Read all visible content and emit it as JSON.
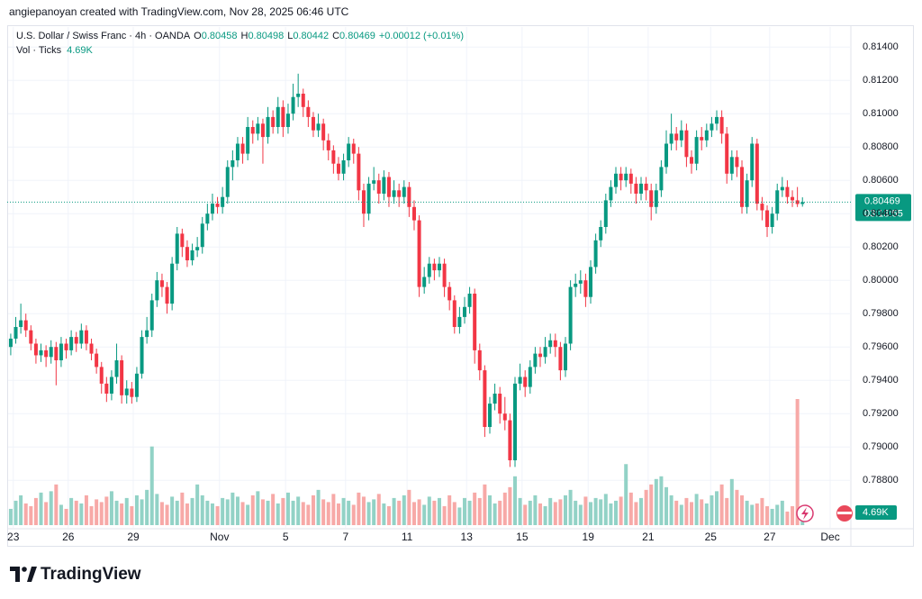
{
  "header": {
    "credit": "angiepanoyan created with TradingView.com, Nov 28, 2025 06:46 UTC"
  },
  "chart_data": {
    "type": "candlestick",
    "symbol": "U.S. Dollar / Swiss Franc · 4h · OANDA",
    "ohlc_labels": [
      "O",
      "H",
      "L",
      "C"
    ],
    "change": "+0.00012 (+0.01%)",
    "volume_title": "Vol · Ticks",
    "last_volume_label": "4.69K",
    "countdown": "03:13:55",
    "up_color": "#089981",
    "down_color": "#f23645",
    "up_volume_color": "#92d2c6",
    "down_volume_color": "#f7a9a7",
    "grid": true,
    "ylim": [
      0.7852,
      0.8152
    ],
    "yticks": [
      {
        "value": 0.814,
        "label": "0.81400"
      },
      {
        "value": 0.812,
        "label": "0.81200"
      },
      {
        "value": 0.81,
        "label": "0.81000"
      },
      {
        "value": 0.808,
        "label": "0.80800"
      },
      {
        "value": 0.806,
        "label": "0.80600"
      },
      {
        "value": 0.804,
        "label": "0.80400"
      },
      {
        "value": 0.802,
        "label": "0.80200"
      },
      {
        "value": 0.8,
        "label": "0.80000"
      },
      {
        "value": 0.798,
        "label": "0.79800"
      },
      {
        "value": 0.796,
        "label": "0.79600"
      },
      {
        "value": 0.794,
        "label": "0.79400"
      },
      {
        "value": 0.792,
        "label": "0.79200"
      },
      {
        "value": 0.79,
        "label": "0.79000"
      },
      {
        "value": 0.788,
        "label": "0.78800"
      }
    ],
    "xlim": [
      -0.7,
      166.6
    ],
    "xticks": [
      {
        "value": 0.5,
        "label": "23"
      },
      {
        "value": 11.4,
        "label": "26"
      },
      {
        "value": 24.3,
        "label": "29"
      },
      {
        "value": 41.4,
        "label": "Nov"
      },
      {
        "value": 54.5,
        "label": "5"
      },
      {
        "value": 66.4,
        "label": "7"
      },
      {
        "value": 78.6,
        "label": "11"
      },
      {
        "value": 90.4,
        "label": "13"
      },
      {
        "value": 101.4,
        "label": "15"
      },
      {
        "value": 114.5,
        "label": "19"
      },
      {
        "value": 126.4,
        "label": "21"
      },
      {
        "value": 138.8,
        "label": "25"
      },
      {
        "value": 150.5,
        "label": "27"
      },
      {
        "value": 162.5,
        "label": "Dec"
      }
    ],
    "candles": [
      [
        0.796,
        0.7968,
        0.7955,
        0.7965
      ],
      [
        0.7965,
        0.7978,
        0.7962,
        0.7972
      ],
      [
        0.7972,
        0.7986,
        0.7968,
        0.7976
      ],
      [
        0.7976,
        0.798,
        0.7966,
        0.797
      ],
      [
        0.797,
        0.7973,
        0.7958,
        0.7962
      ],
      [
        0.7962,
        0.7965,
        0.795,
        0.7955
      ],
      [
        0.7955,
        0.7962,
        0.7951,
        0.7958
      ],
      [
        0.7958,
        0.7961,
        0.7948,
        0.7954
      ],
      [
        0.7954,
        0.7964,
        0.795,
        0.796
      ],
      [
        0.796,
        0.7963,
        0.7937,
        0.7952
      ],
      [
        0.7952,
        0.7966,
        0.7948,
        0.7962
      ],
      [
        0.7962,
        0.7965,
        0.7953,
        0.7958
      ],
      [
        0.7958,
        0.797,
        0.7955,
        0.7966
      ],
      [
        0.7966,
        0.7969,
        0.7957,
        0.7962
      ],
      [
        0.7962,
        0.7974,
        0.7959,
        0.797
      ],
      [
        0.797,
        0.7973,
        0.7958,
        0.7962
      ],
      [
        0.7962,
        0.7965,
        0.7952,
        0.7956
      ],
      [
        0.7956,
        0.7959,
        0.7944,
        0.7948
      ],
      [
        0.7948,
        0.7951,
        0.7932,
        0.7938
      ],
      [
        0.7938,
        0.7942,
        0.7927,
        0.7932
      ],
      [
        0.7932,
        0.7946,
        0.7928,
        0.7942
      ],
      [
        0.7942,
        0.7962,
        0.7938,
        0.7952
      ],
      [
        0.7952,
        0.7955,
        0.7926,
        0.7931
      ],
      [
        0.7931,
        0.794,
        0.7926,
        0.7935
      ],
      [
        0.7935,
        0.7939,
        0.7926,
        0.793
      ],
      [
        0.793,
        0.7948,
        0.7927,
        0.7944
      ],
      [
        0.7944,
        0.797,
        0.7941,
        0.7966
      ],
      [
        0.7966,
        0.7978,
        0.7962,
        0.797
      ],
      [
        0.797,
        0.7992,
        0.7966,
        0.7988
      ],
      [
        0.7988,
        0.8005,
        0.7984,
        0.8
      ],
      [
        0.8,
        0.8004,
        0.799,
        0.7996
      ],
      [
        0.7996,
        0.7999,
        0.798,
        0.7986
      ],
      [
        0.7986,
        0.8014,
        0.7982,
        0.801
      ],
      [
        0.801,
        0.8032,
        0.8006,
        0.8028
      ],
      [
        0.8028,
        0.8031,
        0.8014,
        0.802
      ],
      [
        0.802,
        0.8024,
        0.8008,
        0.8012
      ],
      [
        0.8012,
        0.8022,
        0.8009,
        0.8018
      ],
      [
        0.8018,
        0.8026,
        0.8014,
        0.802
      ],
      [
        0.802,
        0.8038,
        0.8016,
        0.8034
      ],
      [
        0.8034,
        0.8046,
        0.803,
        0.804
      ],
      [
        0.804,
        0.8052,
        0.8036,
        0.8046
      ],
      [
        0.8046,
        0.805,
        0.804,
        0.8044
      ],
      [
        0.8044,
        0.8056,
        0.804,
        0.805
      ],
      [
        0.805,
        0.8072,
        0.8046,
        0.8068
      ],
      [
        0.8068,
        0.8078,
        0.806,
        0.8072
      ],
      [
        0.8072,
        0.8086,
        0.8068,
        0.8082
      ],
      [
        0.8082,
        0.8086,
        0.807,
        0.8076
      ],
      [
        0.8076,
        0.8098,
        0.8072,
        0.8092
      ],
      [
        0.8092,
        0.8096,
        0.8082,
        0.8088
      ],
      [
        0.8088,
        0.8098,
        0.8084,
        0.8094
      ],
      [
        0.8094,
        0.8097,
        0.807,
        0.8086
      ],
      [
        0.8086,
        0.8104,
        0.8082,
        0.8098
      ],
      [
        0.8098,
        0.8102,
        0.8088,
        0.8092
      ],
      [
        0.8092,
        0.811,
        0.8088,
        0.8104
      ],
      [
        0.8104,
        0.8108,
        0.8086,
        0.8092
      ],
      [
        0.8092,
        0.8106,
        0.8088,
        0.81
      ],
      [
        0.81,
        0.8118,
        0.8096,
        0.811
      ],
      [
        0.811,
        0.8124,
        0.8104,
        0.8112
      ],
      [
        0.8112,
        0.8115,
        0.8098,
        0.8104
      ],
      [
        0.8104,
        0.8108,
        0.8092,
        0.8098
      ],
      [
        0.8098,
        0.8101,
        0.8086,
        0.809
      ],
      [
        0.809,
        0.81,
        0.8086,
        0.8094
      ],
      [
        0.8094,
        0.8097,
        0.8078,
        0.8084
      ],
      [
        0.8084,
        0.8088,
        0.8072,
        0.8078
      ],
      [
        0.8078,
        0.8081,
        0.8064,
        0.807
      ],
      [
        0.807,
        0.8074,
        0.806,
        0.8064
      ],
      [
        0.8064,
        0.8076,
        0.806,
        0.8072
      ],
      [
        0.8072,
        0.8086,
        0.8068,
        0.8082
      ],
      [
        0.8082,
        0.8085,
        0.807,
        0.8076
      ],
      [
        0.8076,
        0.808,
        0.8048,
        0.8054
      ],
      [
        0.8054,
        0.8058,
        0.8032,
        0.804
      ],
      [
        0.804,
        0.8062,
        0.8036,
        0.8058
      ],
      [
        0.8058,
        0.8068,
        0.8054,
        0.806
      ],
      [
        0.806,
        0.8064,
        0.8046,
        0.8052
      ],
      [
        0.8052,
        0.8066,
        0.8048,
        0.8062
      ],
      [
        0.8062,
        0.8065,
        0.8044,
        0.805
      ],
      [
        0.805,
        0.806,
        0.8046,
        0.8054
      ],
      [
        0.8054,
        0.8058,
        0.8044,
        0.805
      ],
      [
        0.805,
        0.806,
        0.8046,
        0.8056
      ],
      [
        0.8056,
        0.8059,
        0.8038,
        0.8044
      ],
      [
        0.8044,
        0.8048,
        0.803,
        0.8036
      ],
      [
        0.8036,
        0.8039,
        0.799,
        0.7996
      ],
      [
        0.7996,
        0.8008,
        0.7992,
        0.8002
      ],
      [
        0.8002,
        0.8014,
        0.7998,
        0.801
      ],
      [
        0.801,
        0.8013,
        0.8,
        0.8006
      ],
      [
        0.8006,
        0.8014,
        0.8002,
        0.801
      ],
      [
        0.801,
        0.8013,
        0.799,
        0.7996
      ],
      [
        0.7996,
        0.7999,
        0.7982,
        0.7988
      ],
      [
        0.7988,
        0.7991,
        0.7968,
        0.7972
      ],
      [
        0.7972,
        0.7984,
        0.7968,
        0.7978
      ],
      [
        0.7978,
        0.799,
        0.7974,
        0.7984
      ],
      [
        0.7984,
        0.7996,
        0.798,
        0.7992
      ],
      [
        0.7992,
        0.7995,
        0.795,
        0.7958
      ],
      [
        0.7958,
        0.7962,
        0.794,
        0.7946
      ],
      [
        0.7946,
        0.7949,
        0.7906,
        0.7912
      ],
      [
        0.7912,
        0.793,
        0.7908,
        0.7926
      ],
      [
        0.7926,
        0.7938,
        0.7922,
        0.7932
      ],
      [
        0.7932,
        0.7936,
        0.7914,
        0.792
      ],
      [
        0.792,
        0.793,
        0.791,
        0.7916
      ],
      [
        0.7916,
        0.792,
        0.7888,
        0.7892
      ],
      [
        0.7892,
        0.7942,
        0.7888,
        0.7938
      ],
      [
        0.7938,
        0.795,
        0.7934,
        0.7942
      ],
      [
        0.7942,
        0.7946,
        0.793,
        0.7936
      ],
      [
        0.7936,
        0.7952,
        0.7932,
        0.7948
      ],
      [
        0.7948,
        0.796,
        0.7944,
        0.7956
      ],
      [
        0.7956,
        0.796,
        0.7948,
        0.7954
      ],
      [
        0.7954,
        0.7966,
        0.795,
        0.796
      ],
      [
        0.796,
        0.7968,
        0.7956,
        0.7964
      ],
      [
        0.7964,
        0.7968,
        0.7954,
        0.796
      ],
      [
        0.796,
        0.7963,
        0.794,
        0.7946
      ],
      [
        0.7946,
        0.7966,
        0.7942,
        0.7962
      ],
      [
        0.7962,
        0.8,
        0.7958,
        0.7996
      ],
      [
        0.7996,
        0.8004,
        0.799,
        0.7998
      ],
      [
        0.7998,
        0.8006,
        0.7992,
        0.8
      ],
      [
        0.8,
        0.8004,
        0.7984,
        0.799
      ],
      [
        0.799,
        0.8012,
        0.7986,
        0.8008
      ],
      [
        0.8008,
        0.8028,
        0.8004,
        0.8024
      ],
      [
        0.8024,
        0.8036,
        0.802,
        0.8032
      ],
      [
        0.8032,
        0.8052,
        0.8028,
        0.8048
      ],
      [
        0.8048,
        0.806,
        0.8044,
        0.8056
      ],
      [
        0.8056,
        0.8068,
        0.8052,
        0.8064
      ],
      [
        0.8064,
        0.8068,
        0.8054,
        0.806
      ],
      [
        0.806,
        0.8068,
        0.8056,
        0.8064
      ],
      [
        0.8064,
        0.8067,
        0.8052,
        0.8058
      ],
      [
        0.8058,
        0.8062,
        0.8046,
        0.8052
      ],
      [
        0.8052,
        0.8062,
        0.8048,
        0.8058
      ],
      [
        0.8058,
        0.8062,
        0.8048,
        0.8054
      ],
      [
        0.8054,
        0.8058,
        0.8036,
        0.8044
      ],
      [
        0.8044,
        0.8058,
        0.804,
        0.8054
      ],
      [
        0.8054,
        0.8072,
        0.805,
        0.8068
      ],
      [
        0.8068,
        0.809,
        0.8064,
        0.8082
      ],
      [
        0.8082,
        0.81,
        0.8078,
        0.8088
      ],
      [
        0.8088,
        0.8092,
        0.8078,
        0.8084
      ],
      [
        0.8084,
        0.8096,
        0.808,
        0.809
      ],
      [
        0.809,
        0.8094,
        0.8068,
        0.8074
      ],
      [
        0.8074,
        0.8078,
        0.8064,
        0.807
      ],
      [
        0.807,
        0.809,
        0.8066,
        0.8086
      ],
      [
        0.8086,
        0.8092,
        0.8078,
        0.8084
      ],
      [
        0.8084,
        0.8094,
        0.808,
        0.809
      ],
      [
        0.809,
        0.8098,
        0.8086,
        0.8094
      ],
      [
        0.8094,
        0.8102,
        0.809,
        0.8098
      ],
      [
        0.8098,
        0.8102,
        0.8082,
        0.8088
      ],
      [
        0.8088,
        0.8092,
        0.8058,
        0.8064
      ],
      [
        0.8064,
        0.8078,
        0.806,
        0.8074
      ],
      [
        0.8074,
        0.8078,
        0.8062,
        0.8068
      ],
      [
        0.8068,
        0.8072,
        0.804,
        0.8044
      ],
      [
        0.8044,
        0.8064,
        0.804,
        0.806
      ],
      [
        0.806,
        0.8086,
        0.8056,
        0.8082
      ],
      [
        0.8082,
        0.8085,
        0.8042,
        0.8046
      ],
      [
        0.8046,
        0.805,
        0.8036,
        0.8042
      ],
      [
        0.8042,
        0.8045,
        0.8026,
        0.8032
      ],
      [
        0.8032,
        0.8044,
        0.8028,
        0.804
      ],
      [
        0.804,
        0.8058,
        0.8036,
        0.8054
      ],
      [
        0.8054,
        0.8062,
        0.805,
        0.8056
      ],
      [
        0.8056,
        0.806,
        0.8046,
        0.805
      ],
      [
        0.805,
        0.8054,
        0.8044,
        0.8048
      ],
      [
        0.8048,
        0.8056,
        0.8044,
        0.80458
      ],
      [
        0.80458,
        0.80498,
        0.80442,
        0.80469
      ]
    ],
    "volume": [
      12000,
      18000,
      22000,
      16000,
      14000,
      20000,
      24000,
      17000,
      25000,
      30000,
      15000,
      12000,
      20000,
      18000,
      16000,
      22000,
      14000,
      19000,
      17000,
      21000,
      25000,
      18000,
      16000,
      20000,
      14000,
      22000,
      19000,
      26000,
      58000,
      23000,
      17000,
      15000,
      21000,
      18000,
      24000,
      16000,
      20000,
      30000,
      22000,
      18000,
      16000,
      14000,
      20000,
      19000,
      24000,
      21000,
      17000,
      15000,
      22000,
      25000,
      19000,
      18000,
      23000,
      16000,
      20000,
      24000,
      18000,
      21000,
      17000,
      15000,
      22000,
      26000,
      19000,
      17000,
      23000,
      16000,
      20000,
      18000,
      15000,
      24000,
      21000,
      17000,
      19000,
      23000,
      16000,
      14000,
      20000,
      18000,
      22000,
      26000,
      17000,
      19000,
      15000,
      21000,
      18000,
      20000,
      14000,
      22000,
      17000,
      13000,
      20000,
      18000,
      24000,
      20000,
      30000,
      22000,
      16000,
      18000,
      24000,
      28000,
      36000,
      20000,
      15000,
      18000,
      22000,
      16000,
      14000,
      20000,
      17000,
      19000,
      22000,
      26000,
      18000,
      15000,
      21000,
      17000,
      20000,
      19000,
      23000,
      16000,
      18000,
      21000,
      45000,
      24000,
      17000,
      20000,
      26000,
      30000,
      34000,
      36000,
      28000,
      22000,
      18000,
      15000,
      20000,
      17000,
      23000,
      19000,
      16000,
      22000,
      25000,
      30000,
      20000,
      34000,
      26000,
      22000,
      18000,
      15000,
      16000,
      20000,
      14000,
      12000,
      15000,
      18000,
      10000,
      14000,
      93000,
      4690
    ]
  },
  "footer": {
    "logo": "TradingView"
  }
}
